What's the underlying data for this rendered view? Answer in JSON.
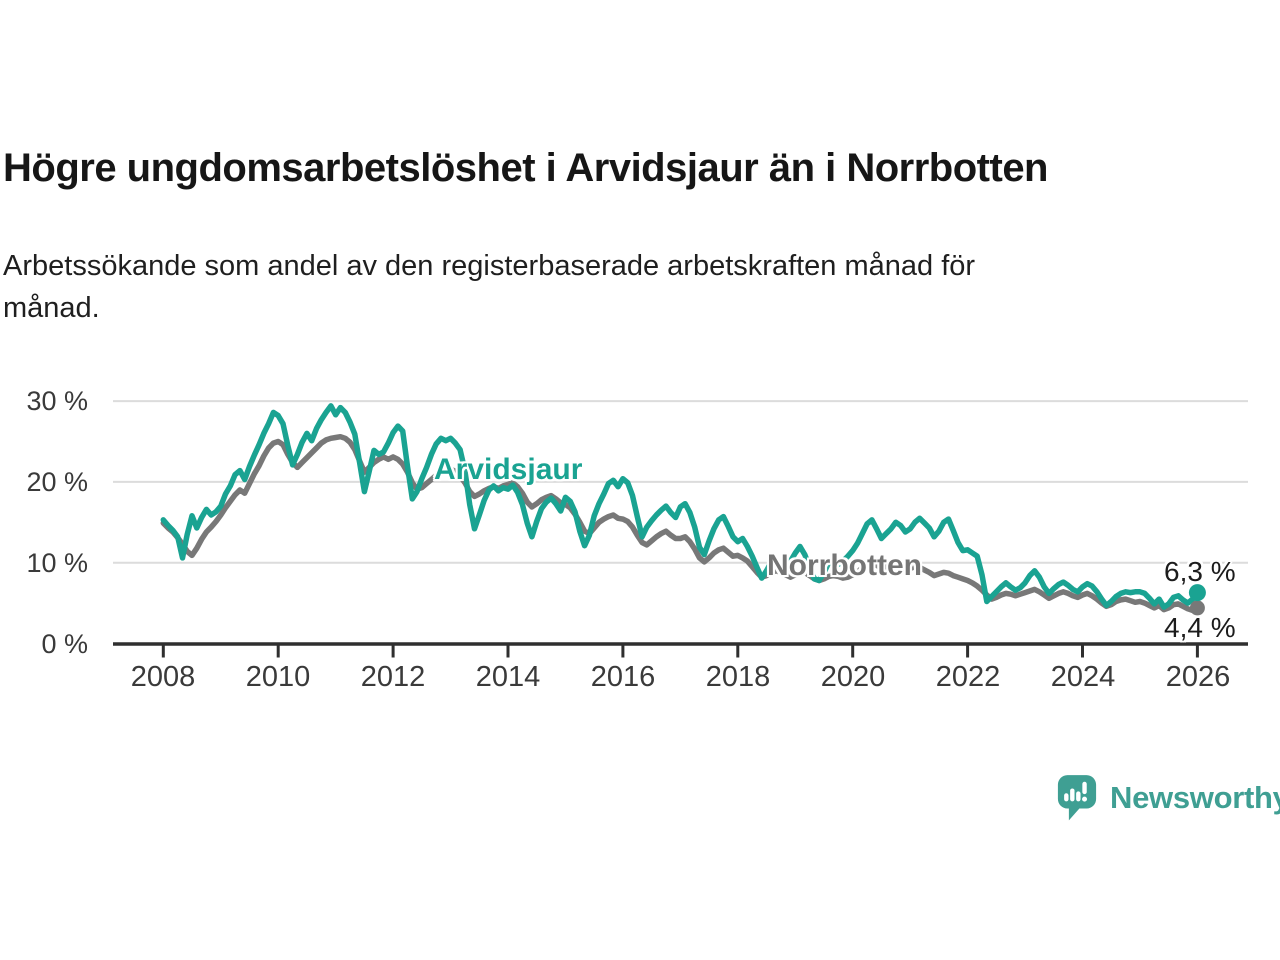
{
  "header": {
    "title": "Högre ungdomsarbetslöshet i Arvidsjaur än i Norrbotten",
    "subtitle_line1": "Arbetssökande som andel av den registerbaserade arbetskraften månad för",
    "subtitle_line2": "månad."
  },
  "footer": {
    "brand": "Newsworthy"
  },
  "colors": {
    "arvidsjaur": "#1aa392",
    "norrbotten": "#787878",
    "axis": "#2f2f2f",
    "gridline": "#dcdcdc",
    "brand_teal": "#3f9f93"
  },
  "chart_data": {
    "type": "line",
    "unit": "%",
    "start_year": 2008,
    "points_per_year": 12,
    "ylim": [
      0,
      30
    ],
    "grid": "horizontal",
    "y_ticks": [
      0,
      10,
      20,
      30
    ],
    "y_tick_labels": [
      "0 %",
      "10 %",
      "20 %",
      "30 %"
    ],
    "x_ticks": [
      2008,
      2010,
      2012,
      2014,
      2016,
      2018,
      2020,
      2022,
      2024,
      2026
    ],
    "x_tick_labels": [
      "2008",
      "2010",
      "2012",
      "2014",
      "2016",
      "2018",
      "2020",
      "2022",
      "2024",
      "2026"
    ],
    "series": [
      {
        "name": "Arvidsjaur",
        "color": "#1aa392",
        "end_label": "6,3 %",
        "end_value": 6.3,
        "values": [
          15.3,
          14.6,
          14.0,
          13.2,
          10.6,
          13.5,
          15.8,
          14.3,
          15.6,
          16.6,
          15.9,
          16.3,
          17.0,
          18.5,
          19.5,
          20.9,
          21.4,
          20.3,
          21.9,
          23.3,
          24.6,
          26.0,
          27.2,
          28.6,
          28.2,
          27.2,
          24.5,
          22.1,
          23.4,
          24.9,
          26.0,
          25.1,
          26.6,
          27.7,
          28.6,
          29.4,
          28.3,
          29.2,
          28.6,
          27.4,
          25.9,
          22.4,
          18.8,
          21.3,
          23.9,
          23.4,
          23.7,
          24.8,
          26.1,
          26.9,
          26.3,
          21.9,
          17.9,
          18.8,
          20.4,
          21.8,
          23.4,
          24.7,
          25.4,
          25.1,
          25.4,
          24.8,
          24.0,
          21.4,
          17.2,
          14.2,
          15.9,
          17.7,
          19.0,
          19.5,
          18.9,
          19.3,
          19.1,
          19.6,
          18.7,
          17.2,
          14.9,
          13.2,
          15.1,
          16.7,
          17.5,
          18.0,
          17.3,
          16.4,
          18.1,
          17.6,
          16.3,
          13.9,
          12.1,
          13.4,
          15.8,
          17.3,
          18.5,
          19.8,
          20.2,
          19.4,
          20.4,
          19.9,
          18.3,
          15.7,
          13.2,
          14.4,
          15.2,
          15.9,
          16.5,
          17.0,
          16.2,
          15.6,
          16.9,
          17.3,
          16.2,
          14.4,
          11.9,
          11.0,
          12.7,
          14.2,
          15.3,
          15.7,
          14.5,
          13.2,
          12.6,
          13.0,
          12.0,
          10.8,
          9.4,
          8.1,
          9.0,
          10.1,
          9.7,
          9.3,
          9.4,
          10.2,
          11.2,
          12.0,
          11.0,
          9.4,
          8.0,
          7.8,
          8.8,
          10.0,
          10.4,
          9.8,
          10.2,
          10.8,
          11.5,
          12.4,
          13.6,
          14.8,
          15.3,
          14.2,
          13.0,
          13.6,
          14.2,
          15.0,
          14.6,
          13.8,
          14.2,
          15.0,
          15.5,
          14.9,
          14.3,
          13.2,
          13.9,
          15.0,
          15.4,
          14.0,
          12.5,
          11.5,
          11.6,
          11.2,
          10.8,
          8.5,
          5.2,
          5.8,
          6.4,
          7.0,
          7.5,
          7.0,
          6.6,
          6.9,
          7.5,
          8.4,
          9.0,
          8.2,
          7.0,
          6.2,
          6.8,
          7.3,
          7.6,
          7.2,
          6.7,
          6.4,
          7.0,
          7.4,
          7.1,
          6.4,
          5.5,
          4.7,
          5.2,
          5.8,
          6.2,
          6.4,
          6.3,
          6.4,
          6.4,
          6.2,
          5.6,
          4.9,
          5.5,
          4.5,
          4.9,
          5.7,
          5.9,
          5.4,
          5.0,
          5.5,
          6.3
        ]
      },
      {
        "name": "Norrbotten",
        "color": "#787878",
        "end_label": "4,4 %",
        "end_value": 4.4,
        "values": [
          14.9,
          14.3,
          13.8,
          13.1,
          12.3,
          11.4,
          10.9,
          11.8,
          12.9,
          13.8,
          14.4,
          15.1,
          15.9,
          16.8,
          17.6,
          18.4,
          19.0,
          18.6,
          19.8,
          21.0,
          22.0,
          23.2,
          24.2,
          24.8,
          25.0,
          24.6,
          23.4,
          22.4,
          21.8,
          22.4,
          23.0,
          23.6,
          24.2,
          24.8,
          25.2,
          25.4,
          25.5,
          25.6,
          25.4,
          24.9,
          24.0,
          22.6,
          21.2,
          21.8,
          22.4,
          22.8,
          23.1,
          22.8,
          23.1,
          22.8,
          22.2,
          21.2,
          19.9,
          19.1,
          19.3,
          19.8,
          20.3,
          20.8,
          21.1,
          21.4,
          21.6,
          21.3,
          20.7,
          19.9,
          18.8,
          18.2,
          18.5,
          18.9,
          19.2,
          19.4,
          19.2,
          19.5,
          19.7,
          19.9,
          19.4,
          18.6,
          17.5,
          16.9,
          17.3,
          17.8,
          18.1,
          18.3,
          17.9,
          17.4,
          17.2,
          16.8,
          16.0,
          15.0,
          13.9,
          13.6,
          14.3,
          15.0,
          15.4,
          15.7,
          15.9,
          15.5,
          15.4,
          15.1,
          14.4,
          13.4,
          12.5,
          12.2,
          12.7,
          13.2,
          13.6,
          13.9,
          13.4,
          13.0,
          13.0,
          13.2,
          12.6,
          11.7,
          10.6,
          10.1,
          10.6,
          11.2,
          11.6,
          11.8,
          11.3,
          10.8,
          10.9,
          10.6,
          10.2,
          9.5,
          8.8,
          8.2,
          8.4,
          8.8,
          9.0,
          8.8,
          8.5,
          8.2,
          8.5,
          8.7,
          8.8,
          8.4,
          8.0,
          7.8,
          8.0,
          8.3,
          8.4,
          8.3,
          8.1,
          8.2,
          8.5,
          8.8,
          9.4,
          9.9,
          10.1,
          9.7,
          9.3,
          9.5,
          9.6,
          9.7,
          9.4,
          9.1,
          9.3,
          9.5,
          9.4,
          9.1,
          8.8,
          8.4,
          8.6,
          8.8,
          8.7,
          8.4,
          8.2,
          8.0,
          7.8,
          7.5,
          7.1,
          6.6,
          6.0,
          5.5,
          5.7,
          6.0,
          6.2,
          6.1,
          5.9,
          6.1,
          6.3,
          6.5,
          6.7,
          6.4,
          6.0,
          5.6,
          5.9,
          6.2,
          6.4,
          6.2,
          5.9,
          5.7,
          6.0,
          6.2,
          5.9,
          5.5,
          5.0,
          4.6,
          4.8,
          5.2,
          5.4,
          5.5,
          5.3,
          5.1,
          5.2,
          5.0,
          4.7,
          4.4,
          4.7,
          4.2,
          4.4,
          4.8,
          4.9,
          4.6,
          4.3,
          4.1,
          4.4
        ]
      }
    ]
  }
}
